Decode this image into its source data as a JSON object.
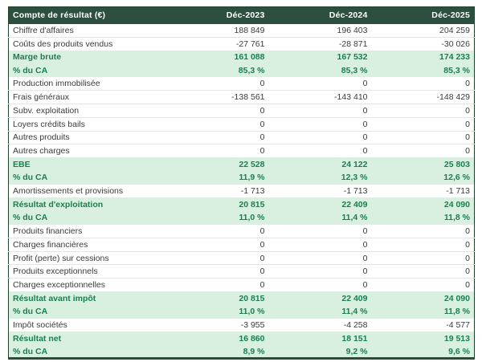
{
  "chart_data": {
    "type": "table",
    "title": "Compte de résultat (€)",
    "columns": [
      "Déc-2023",
      "Déc-2024",
      "Déc-2025"
    ],
    "rows": [
      {
        "label": "Chiffre d'affaires",
        "values": [
          "188 849",
          "196 403",
          "204 259"
        ],
        "highlight": false
      },
      {
        "label": "Coûts des produits vendus",
        "values": [
          "-27 761",
          "-28 871",
          "-30 026"
        ],
        "highlight": false
      },
      {
        "label": "Marge brute",
        "values": [
          "161 088",
          "167 532",
          "174 233"
        ],
        "highlight": true
      },
      {
        "label": "% du CA",
        "values": [
          "85,3 %",
          "85,3 %",
          "85,3 %"
        ],
        "highlight": true
      },
      {
        "label": "Production immobilisée",
        "values": [
          "0",
          "0",
          "0"
        ],
        "highlight": false
      },
      {
        "label": "Frais généraux",
        "values": [
          "-138 561",
          "-143 410",
          "-148 429"
        ],
        "highlight": false
      },
      {
        "label": "Subv. exploitation",
        "values": [
          "0",
          "0",
          "0"
        ],
        "highlight": false
      },
      {
        "label": "Loyers crédits bails",
        "values": [
          "0",
          "0",
          "0"
        ],
        "highlight": false
      },
      {
        "label": "Autres produits",
        "values": [
          "0",
          "0",
          "0"
        ],
        "highlight": false
      },
      {
        "label": "Autres charges",
        "values": [
          "0",
          "0",
          "0"
        ],
        "highlight": false
      },
      {
        "label": "EBE",
        "values": [
          "22 528",
          "24 122",
          "25 803"
        ],
        "highlight": true
      },
      {
        "label": "% du CA",
        "values": [
          "11,9 %",
          "12,3 %",
          "12,6 %"
        ],
        "highlight": true
      },
      {
        "label": "Amortissements et provisions",
        "values": [
          "-1 713",
          "-1 713",
          "-1 713"
        ],
        "highlight": false
      },
      {
        "label": "Résultat d'exploitation",
        "values": [
          "20 815",
          "22 409",
          "24 090"
        ],
        "highlight": true
      },
      {
        "label": "% du CA",
        "values": [
          "11,0 %",
          "11,4 %",
          "11,8 %"
        ],
        "highlight": true
      },
      {
        "label": "Produits financiers",
        "values": [
          "0",
          "0",
          "0"
        ],
        "highlight": false
      },
      {
        "label": "Charges financières",
        "values": [
          "0",
          "0",
          "0"
        ],
        "highlight": false
      },
      {
        "label": "Profit (perte) sur cessions",
        "values": [
          "0",
          "0",
          "0"
        ],
        "highlight": false
      },
      {
        "label": "Produits exceptionnels",
        "values": [
          "0",
          "0",
          "0"
        ],
        "highlight": false
      },
      {
        "label": "Charges exceptionnelles",
        "values": [
          "0",
          "0",
          "0"
        ],
        "highlight": false
      },
      {
        "label": "Résultat avant impôt",
        "values": [
          "20 815",
          "22 409",
          "24 090"
        ],
        "highlight": true
      },
      {
        "label": "% du CA",
        "values": [
          "11,0 %",
          "11,4 %",
          "11,8 %"
        ],
        "highlight": true
      },
      {
        "label": "Impôt sociétés",
        "values": [
          "-3 955",
          "-4 258",
          "-4 577"
        ],
        "highlight": false
      },
      {
        "label": "Résultat net",
        "values": [
          "16 860",
          "18 151",
          "19 513"
        ],
        "highlight": true
      },
      {
        "label": "% du CA",
        "values": [
          "8,9 %",
          "9,2 %",
          "9,6 %"
        ],
        "highlight": true
      }
    ]
  },
  "colors": {
    "header_bg": "#2d4f3f",
    "header_text": "#ffffff",
    "highlight_bg": "#d9efdf",
    "highlight_text": "#1a8051",
    "row_border": "#e5e5e5",
    "outer_border": "#21412f",
    "outer_border_bottom": "#2b4c3b"
  }
}
